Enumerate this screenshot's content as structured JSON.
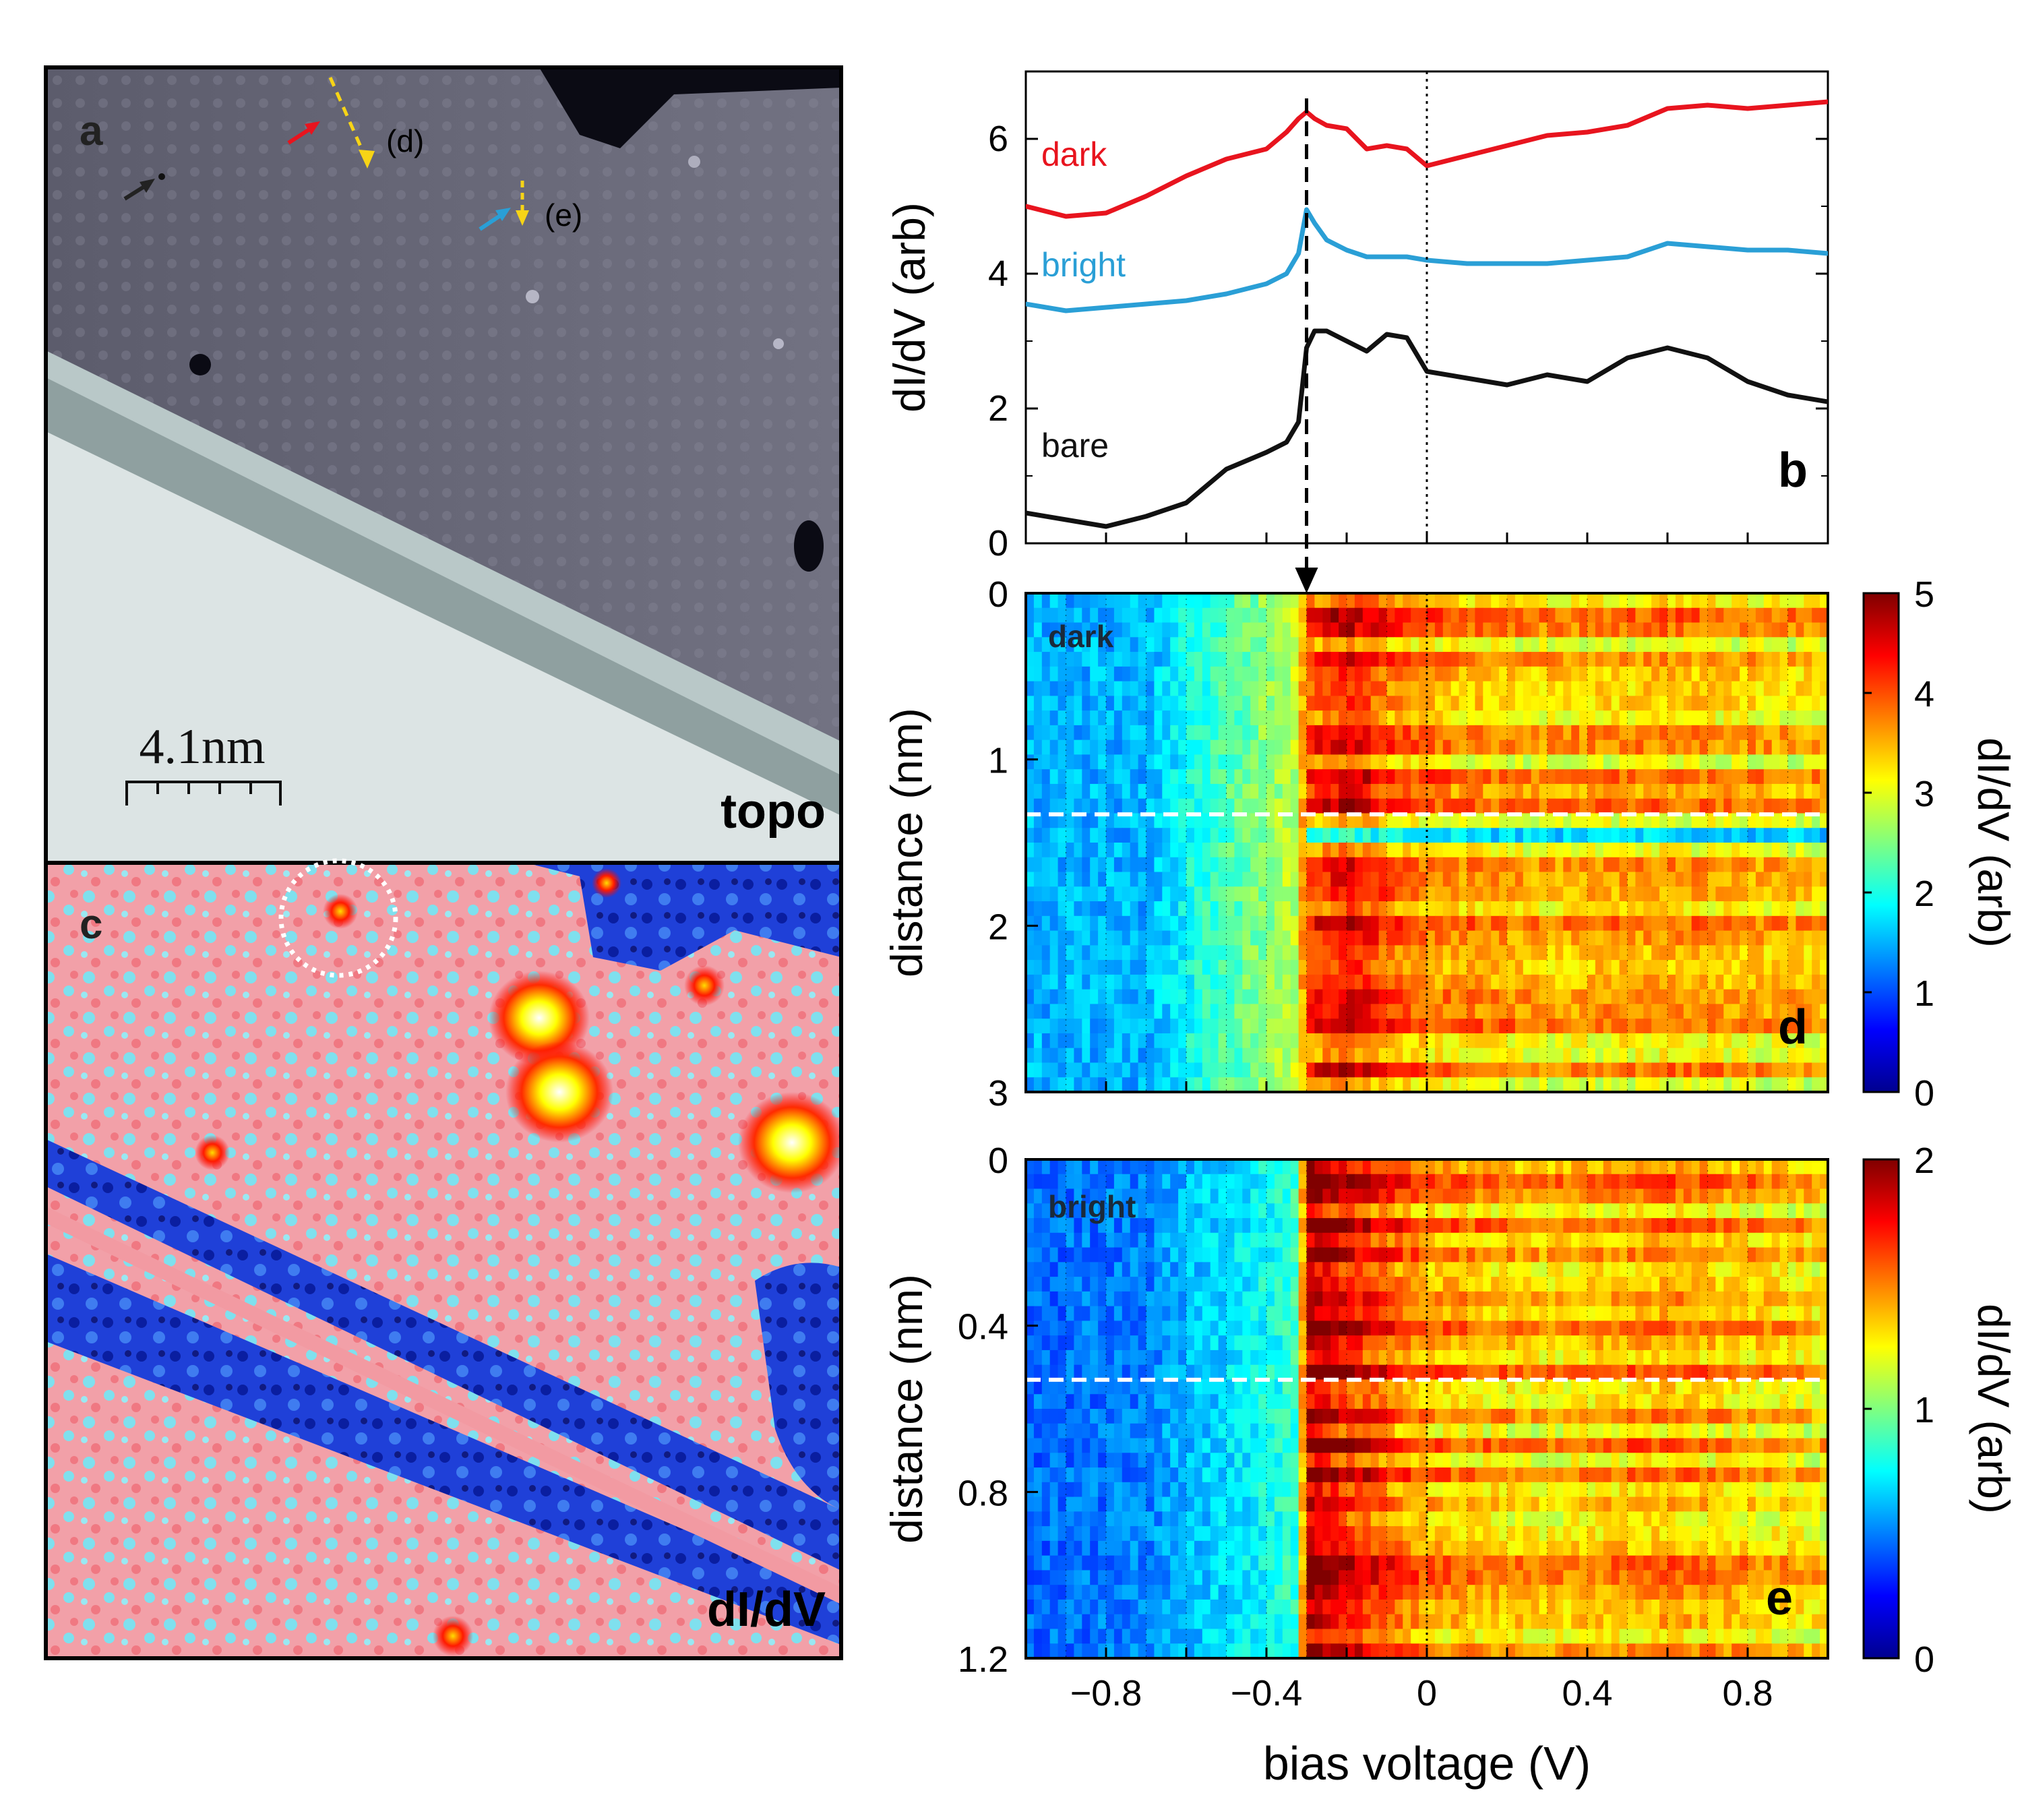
{
  "panel_a": {
    "letter": "a",
    "corner_label": "topo",
    "marker_d": "(d)",
    "marker_e": "(e)",
    "scalebar_label": "4.1nm",
    "colors": {
      "terrace": "#6a6a7a",
      "step_band": "#8fa0a0",
      "substrate": "#d4dcdc"
    }
  },
  "panel_c": {
    "letter": "c",
    "corner_label": "dI/dV"
  },
  "chart_data": [
    {
      "panel": "b",
      "type": "line",
      "ylabel": "dI/dV (arb)",
      "xlim": [
        -1.0,
        1.0
      ],
      "ylim": [
        0,
        7
      ],
      "yticks": [
        0,
        2,
        4,
        6
      ],
      "x": [
        -1.0,
        -0.9,
        -0.8,
        -0.7,
        -0.6,
        -0.5,
        -0.4,
        -0.35,
        -0.32,
        -0.3,
        -0.28,
        -0.25,
        -0.2,
        -0.15,
        -0.1,
        -0.05,
        0.0,
        0.1,
        0.2,
        0.3,
        0.4,
        0.5,
        0.6,
        0.7,
        0.8,
        0.9,
        1.0
      ],
      "series": [
        {
          "name": "dark",
          "color": "#e8141e",
          "values": [
            5.0,
            4.85,
            4.9,
            5.15,
            5.45,
            5.7,
            5.85,
            6.1,
            6.3,
            6.4,
            6.3,
            6.2,
            6.15,
            5.85,
            5.9,
            5.85,
            5.6,
            5.75,
            5.9,
            6.05,
            6.1,
            6.2,
            6.45,
            6.5,
            6.45,
            6.5,
            6.55
          ]
        },
        {
          "name": "bright",
          "color": "#2a9fd6",
          "values": [
            3.55,
            3.45,
            3.5,
            3.55,
            3.6,
            3.7,
            3.85,
            4.0,
            4.3,
            4.95,
            4.75,
            4.5,
            4.35,
            4.25,
            4.25,
            4.25,
            4.2,
            4.15,
            4.15,
            4.15,
            4.2,
            4.25,
            4.45,
            4.4,
            4.35,
            4.35,
            4.3
          ]
        },
        {
          "name": "bare",
          "color": "#111111",
          "values": [
            0.45,
            0.35,
            0.25,
            0.4,
            0.6,
            1.1,
            1.35,
            1.5,
            1.8,
            2.9,
            3.15,
            3.15,
            3.0,
            2.85,
            3.1,
            3.05,
            2.55,
            2.45,
            2.35,
            2.5,
            2.4,
            2.75,
            2.9,
            2.75,
            2.4,
            2.2,
            2.1
          ]
        }
      ],
      "labels": [
        "dark",
        "bright",
        "bare"
      ],
      "panel_letter": "b",
      "vline_dashed": -0.3,
      "vline_dotted": 0.0
    },
    {
      "panel": "d",
      "type": "heatmap",
      "ylabel": "distance (nm)",
      "cbar_label": "dI/dV (arb)",
      "xlim": [
        -1.0,
        1.0
      ],
      "ylim": [
        0,
        3
      ],
      "yticks": [
        "0",
        "1",
        "2",
        "3"
      ],
      "cbar_range": [
        0,
        5
      ],
      "cbar_ticks": [
        "0",
        "1",
        "2",
        "3",
        "4",
        "5"
      ],
      "inset_label": "dark",
      "panel_letter": "d",
      "dashed_line_distance": 1.33,
      "onset_voltage": -0.3,
      "profile": [
        {
          "v": -1.0,
          "z": 1.5
        },
        {
          "v": -0.7,
          "z": 1.5
        },
        {
          "v": -0.6,
          "z": 1.9
        },
        {
          "v": -0.45,
          "z": 2.4
        },
        {
          "v": -0.33,
          "z": 2.8
        },
        {
          "v": -0.3,
          "z": 3.9
        },
        {
          "v": -0.2,
          "z": 4.3
        },
        {
          "v": -0.1,
          "z": 3.9
        },
        {
          "v": 0.0,
          "z": 3.6
        },
        {
          "v": 0.3,
          "z": 3.4
        },
        {
          "v": 0.6,
          "z": 3.5
        },
        {
          "v": 1.0,
          "z": 3.3
        }
      ]
    },
    {
      "panel": "e",
      "type": "heatmap",
      "ylabel": "distance (nm)",
      "xlabel": "bias voltage (V)",
      "cbar_label": "dI/dV (arb)",
      "xlim": [
        -1.0,
        1.0
      ],
      "ylim": [
        0,
        1.2
      ],
      "xticks": [
        "-0.8",
        "-0.4",
        "0",
        "0.4",
        "0.8"
      ],
      "yticks": [
        "0",
        "0.4",
        "0.8",
        "1.2"
      ],
      "cbar_range": [
        0,
        2
      ],
      "cbar_ticks": [
        "0",
        "1",
        "2"
      ],
      "inset_label": "bright",
      "panel_letter": "e",
      "dashed_line_distance": 0.53,
      "onset_voltage": -0.3,
      "profile": [
        {
          "v": -1.0,
          "z": 0.45
        },
        {
          "v": -0.7,
          "z": 0.5
        },
        {
          "v": -0.6,
          "z": 0.62
        },
        {
          "v": -0.45,
          "z": 0.72
        },
        {
          "v": -0.32,
          "z": 0.85
        },
        {
          "v": -0.3,
          "z": 1.95
        },
        {
          "v": -0.2,
          "z": 1.75
        },
        {
          "v": -0.1,
          "z": 1.6
        },
        {
          "v": 0.0,
          "z": 1.45
        },
        {
          "v": 0.3,
          "z": 1.35
        },
        {
          "v": 0.6,
          "z": 1.45
        },
        {
          "v": 1.0,
          "z": 1.3
        }
      ]
    }
  ]
}
